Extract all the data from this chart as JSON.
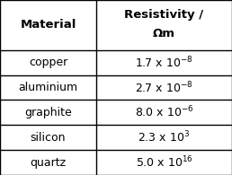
{
  "col1_header": "Material",
  "col2_header_line1": "Resistivity /",
  "col2_header_line2": "Ωm",
  "rows": [
    [
      "copper",
      "1.7 x 10$^{-8}$"
    ],
    [
      "aluminium",
      "2.7 x 10$^{-8}$"
    ],
    [
      "graphite",
      "8.0 x 10$^{-6}$"
    ],
    [
      "silicon",
      "2.3 x 10$^{3}$"
    ],
    [
      "quartz",
      "5.0 x 10$^{16}$"
    ]
  ],
  "bg_color": "#ffffff",
  "border_color": "#000000",
  "header_fontsize": 9.5,
  "cell_fontsize": 9,
  "col_split": 0.415,
  "figsize": [
    2.58,
    1.95
  ],
  "dpi": 100
}
